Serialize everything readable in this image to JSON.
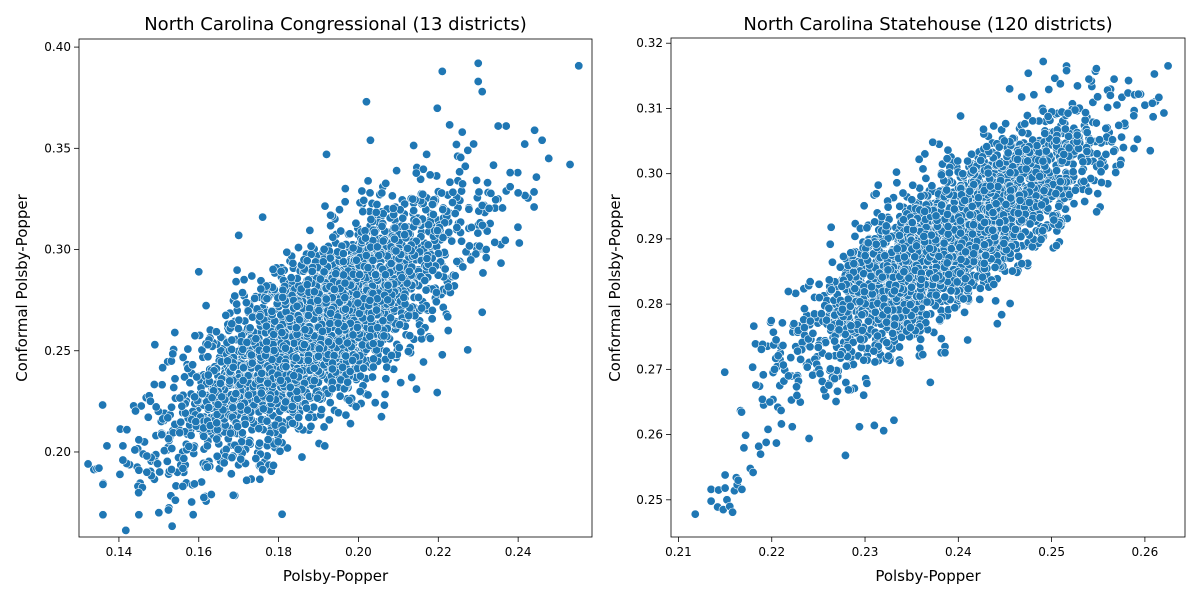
{
  "chart_data": [
    {
      "type": "scatter",
      "title": "North Carolina Congressional (13 districts)",
      "xlabel": "Polsby-Popper",
      "ylabel": "Conformal Polsby-Popper",
      "xlim": [
        0.13,
        0.2585
      ],
      "ylim": [
        0.158,
        0.404
      ],
      "xticks": [
        "0.14",
        "0.16",
        "0.18",
        "0.20",
        "0.22",
        "0.24"
      ],
      "yticks": [
        "0.20",
        "0.25",
        "0.30",
        "0.35",
        "0.40"
      ],
      "grid": false,
      "color": "#1f77b4",
      "cloud": {
        "n": 3000,
        "x_mean": 0.19,
        "x_sd": 0.018,
        "y_intercept": 0.0105,
        "y_slope": 1.315,
        "y_noise_sd": 0.0205
      },
      "points": [
        {
          "x": 0.136,
          "y": 0.169
        },
        {
          "x": 0.136,
          "y": 0.184
        },
        {
          "x": 0.137,
          "y": 0.203
        },
        {
          "x": 0.135,
          "y": 0.192
        },
        {
          "x": 0.141,
          "y": 0.196
        },
        {
          "x": 0.141,
          "y": 0.203
        },
        {
          "x": 0.142,
          "y": 0.211
        },
        {
          "x": 0.144,
          "y": 0.201
        },
        {
          "x": 0.145,
          "y": 0.191
        },
        {
          "x": 0.145,
          "y": 0.206
        },
        {
          "x": 0.145,
          "y": 0.169
        },
        {
          "x": 0.147,
          "y": 0.198
        },
        {
          "x": 0.147,
          "y": 0.19
        },
        {
          "x": 0.149,
          "y": 0.253
        },
        {
          "x": 0.15,
          "y": 0.17
        },
        {
          "x": 0.156,
          "y": 0.183
        },
        {
          "x": 0.154,
          "y": 0.259
        },
        {
          "x": 0.16,
          "y": 0.289
        },
        {
          "x": 0.172,
          "y": 0.186
        },
        {
          "x": 0.17,
          "y": 0.307
        },
        {
          "x": 0.176,
          "y": 0.316
        },
        {
          "x": 0.198,
          "y": 0.214
        },
        {
          "x": 0.202,
          "y": 0.373
        },
        {
          "x": 0.221,
          "y": 0.388
        },
        {
          "x": 0.221,
          "y": 0.248
        },
        {
          "x": 0.23,
          "y": 0.392
        },
        {
          "x": 0.23,
          "y": 0.383
        },
        {
          "x": 0.231,
          "y": 0.378
        },
        {
          "x": 0.231,
          "y": 0.269
        },
        {
          "x": 0.232,
          "y": 0.296
        },
        {
          "x": 0.232,
          "y": 0.3
        },
        {
          "x": 0.237,
          "y": 0.361
        },
        {
          "x": 0.235,
          "y": 0.361
        },
        {
          "x": 0.238,
          "y": 0.338
        },
        {
          "x": 0.238,
          "y": 0.331
        },
        {
          "x": 0.24,
          "y": 0.328
        },
        {
          "x": 0.244,
          "y": 0.321
        },
        {
          "x": 0.246,
          "y": 0.354
        },
        {
          "x": 0.253,
          "y": 0.342
        },
        {
          "x": 0.226,
          "y": 0.358
        },
        {
          "x": 0.203,
          "y": 0.354
        },
        {
          "x": 0.192,
          "y": 0.347
        }
      ]
    },
    {
      "type": "scatter",
      "title": "North Carolina Statehouse (120 districts)",
      "xlabel": "Polsby-Popper",
      "ylabel": "Conformal Polsby-Popper",
      "xlim": [
        0.2092,
        0.2643
      ],
      "ylim": [
        0.2443,
        0.3208
      ],
      "xticks": [
        "0.21",
        "0.22",
        "0.23",
        "0.24",
        "0.25",
        "0.26"
      ],
      "yticks": [
        "0.25",
        "0.26",
        "0.27",
        "0.28",
        "0.29",
        "0.30",
        "0.31",
        "0.32"
      ],
      "grid": false,
      "color": "#1f77b4",
      "cloud": {
        "n": 3000,
        "x_mean": 0.239,
        "x_sd": 0.0075,
        "y_intercept": 0.0618,
        "y_slope": 0.952,
        "y_noise_sd": 0.0052
      },
      "points": [
        {
          "x": 0.2118,
          "y": 0.2478
        },
        {
          "x": 0.2135,
          "y": 0.2498
        },
        {
          "x": 0.2135,
          "y": 0.2516
        },
        {
          "x": 0.2142,
          "y": 0.2489
        },
        {
          "x": 0.2143,
          "y": 0.2515
        },
        {
          "x": 0.2148,
          "y": 0.2485
        },
        {
          "x": 0.215,
          "y": 0.2538
        },
        {
          "x": 0.215,
          "y": 0.2518
        },
        {
          "x": 0.2152,
          "y": 0.25
        },
        {
          "x": 0.2155,
          "y": 0.249
        },
        {
          "x": 0.2158,
          "y": 0.2481
        },
        {
          "x": 0.216,
          "y": 0.2514
        },
        {
          "x": 0.2162,
          "y": 0.2534
        },
        {
          "x": 0.2163,
          "y": 0.2523
        },
        {
          "x": 0.2164,
          "y": 0.253
        },
        {
          "x": 0.2168,
          "y": 0.2516
        },
        {
          "x": 0.2172,
          "y": 0.2599
        },
        {
          "x": 0.2177,
          "y": 0.2548
        },
        {
          "x": 0.218,
          "y": 0.2542
        },
        {
          "x": 0.2183,
          "y": 0.2676
        },
        {
          "x": 0.2186,
          "y": 0.2582
        },
        {
          "x": 0.2188,
          "y": 0.257
        },
        {
          "x": 0.219,
          "y": 0.2654
        },
        {
          "x": 0.2194,
          "y": 0.2588
        },
        {
          "x": 0.2196,
          "y": 0.2608
        },
        {
          "x": 0.2198,
          "y": 0.265
        },
        {
          "x": 0.2203,
          "y": 0.27
        },
        {
          "x": 0.2205,
          "y": 0.2587
        },
        {
          "x": 0.221,
          "y": 0.2637
        },
        {
          "x": 0.2213,
          "y": 0.2682
        },
        {
          "x": 0.2218,
          "y": 0.269
        },
        {
          "x": 0.2222,
          "y": 0.2612
        },
        {
          "x": 0.2227,
          "y": 0.266
        },
        {
          "x": 0.2235,
          "y": 0.2764
        },
        {
          "x": 0.224,
          "y": 0.2594
        },
        {
          "x": 0.2251,
          "y": 0.281
        },
        {
          "x": 0.2264,
          "y": 0.2822
        },
        {
          "x": 0.2279,
          "y": 0.2568
        },
        {
          "x": 0.2282,
          "y": 0.2859
        },
        {
          "x": 0.2288,
          "y": 0.2862
        },
        {
          "x": 0.2294,
          "y": 0.2612
        },
        {
          "x": 0.2302,
          "y": 0.2917
        },
        {
          "x": 0.231,
          "y": 0.2614
        },
        {
          "x": 0.2318,
          "y": 0.2934
        },
        {
          "x": 0.232,
          "y": 0.2606
        },
        {
          "x": 0.2331,
          "y": 0.2622
        },
        {
          "x": 0.2358,
          "y": 0.3022
        },
        {
          "x": 0.237,
          "y": 0.268
        },
        {
          "x": 0.2388,
          "y": 0.3023
        },
        {
          "x": 0.241,
          "y": 0.2745
        },
        {
          "x": 0.2427,
          "y": 0.3068
        },
        {
          "x": 0.244,
          "y": 0.2805
        },
        {
          "x": 0.2455,
          "y": 0.313
        },
        {
          "x": 0.2468,
          "y": 0.2862
        },
        {
          "x": 0.2475,
          "y": 0.3154
        },
        {
          "x": 0.2481,
          "y": 0.3121
        },
        {
          "x": 0.2491,
          "y": 0.3172
        },
        {
          "x": 0.2497,
          "y": 0.3129
        },
        {
          "x": 0.2516,
          "y": 0.3165
        },
        {
          "x": 0.2516,
          "y": 0.3158
        },
        {
          "x": 0.2524,
          "y": 0.2954
        },
        {
          "x": 0.254,
          "y": 0.3145
        },
        {
          "x": 0.2547,
          "y": 0.3157
        },
        {
          "x": 0.2548,
          "y": 0.3161
        },
        {
          "x": 0.2553,
          "y": 0.3003
        },
        {
          "x": 0.256,
          "y": 0.3128
        },
        {
          "x": 0.2563,
          "y": 0.312
        },
        {
          "x": 0.2567,
          "y": 0.3145
        },
        {
          "x": 0.2572,
          "y": 0.3074
        },
        {
          "x": 0.2575,
          "y": 0.3056
        },
        {
          "x": 0.2589,
          "y": 0.3121
        },
        {
          "x": 0.2593,
          "y": 0.3122
        },
        {
          "x": 0.26,
          "y": 0.3105
        },
        {
          "x": 0.2608,
          "y": 0.3108
        },
        {
          "x": 0.2615,
          "y": 0.3117
        }
      ]
    }
  ]
}
